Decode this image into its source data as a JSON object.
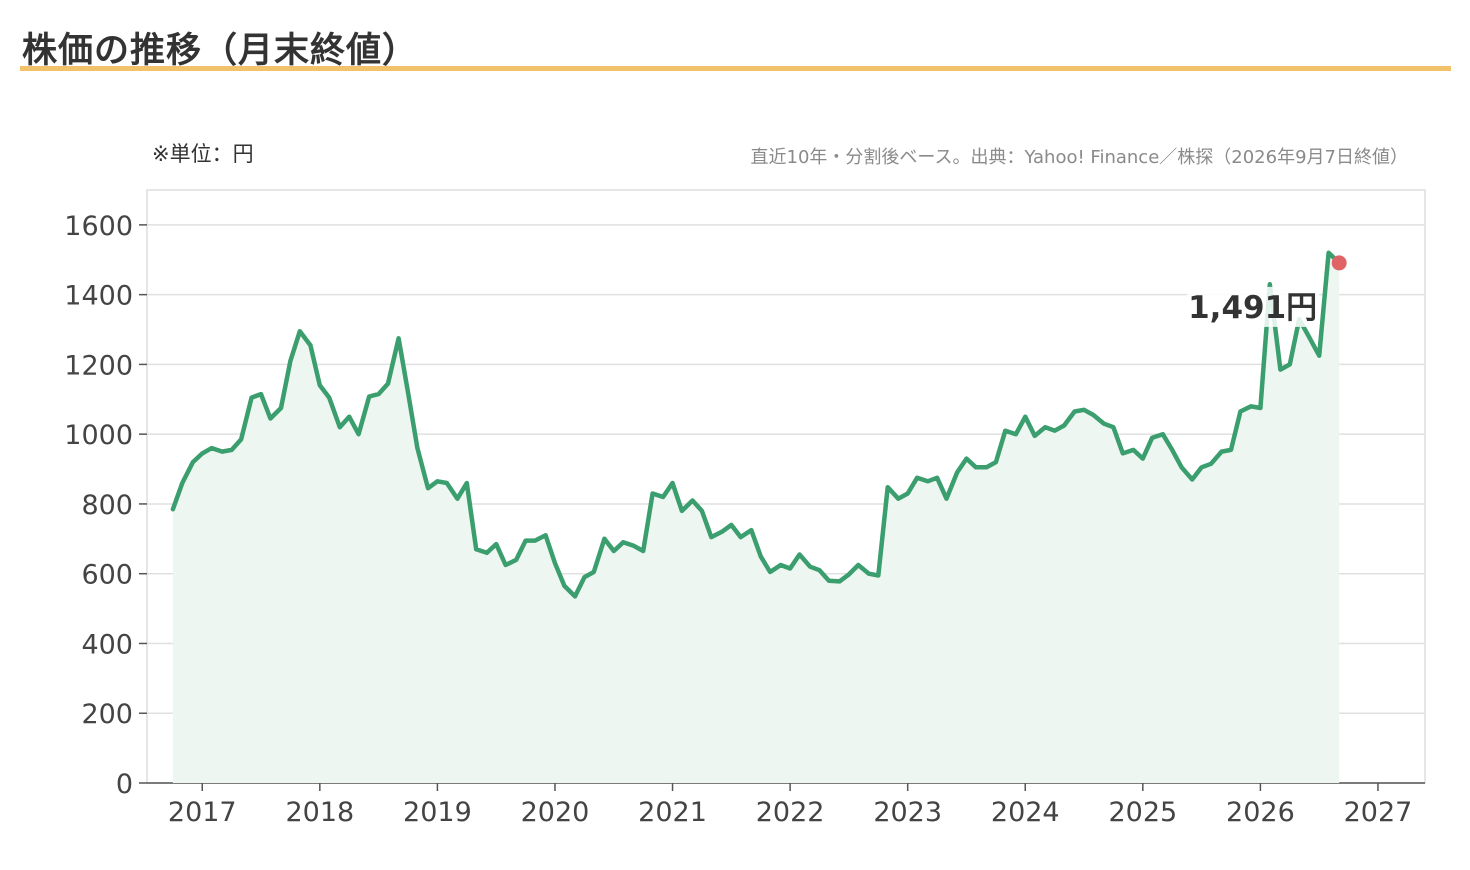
{
  "header": {
    "title": "株価の推移（月末終値）"
  },
  "notes": {
    "unit": "※単位：円",
    "source": "直近10年・分割後ベース。出典：Yahoo! Finance／株探（2026年9月7日終値）"
  },
  "colors": {
    "line": "#3a9e6e",
    "area": "#edf6f0",
    "marker": "#e06466",
    "accent_rule": "#f2c26b",
    "grid": "#e0e0e0"
  },
  "chart_data": {
    "type": "area",
    "title": "株価の推移（月末終値）",
    "xlabel": "",
    "ylabel": "",
    "ylim": [
      0,
      1700
    ],
    "xlim": [
      2016.53,
      2027.4
    ],
    "y_ticks": [
      0,
      200,
      400,
      600,
      800,
      1000,
      1200,
      1400,
      1600
    ],
    "x_ticks": [
      2017,
      2018,
      2019,
      2020,
      2021,
      2022,
      2023,
      2024,
      2025,
      2026,
      2027
    ],
    "grid": true,
    "legend": "none",
    "last_value_label": "1,491円",
    "x": [
      2016.75,
      2016.83,
      2016.92,
      2017.0,
      2017.08,
      2017.17,
      2017.25,
      2017.33,
      2017.42,
      2017.5,
      2017.58,
      2017.67,
      2017.75,
      2017.83,
      2017.92,
      2018.0,
      2018.08,
      2018.17,
      2018.25,
      2018.33,
      2018.42,
      2018.5,
      2018.58,
      2018.67,
      2018.75,
      2018.83,
      2018.92,
      2019.0,
      2019.08,
      2019.17,
      2019.25,
      2019.33,
      2019.42,
      2019.5,
      2019.58,
      2019.67,
      2019.75,
      2019.83,
      2019.92,
      2020.0,
      2020.08,
      2020.17,
      2020.25,
      2020.33,
      2020.42,
      2020.5,
      2020.58,
      2020.67,
      2020.75,
      2020.83,
      2020.92,
      2021.0,
      2021.08,
      2021.17,
      2021.25,
      2021.33,
      2021.42,
      2021.5,
      2021.58,
      2021.67,
      2021.75,
      2021.83,
      2021.92,
      2022.0,
      2022.08,
      2022.17,
      2022.25,
      2022.33,
      2022.42,
      2022.5,
      2022.58,
      2022.67,
      2022.75,
      2022.83,
      2022.92,
      2023.0,
      2023.08,
      2023.17,
      2023.25,
      2023.33,
      2023.42,
      2023.5,
      2023.58,
      2023.67,
      2023.75,
      2023.83,
      2023.92,
      2024.0,
      2024.08,
      2024.17,
      2024.25,
      2024.33,
      2024.42,
      2024.5,
      2024.58,
      2024.67,
      2024.75,
      2024.83,
      2024.92,
      2025.0,
      2025.08,
      2025.17,
      2025.25,
      2025.33,
      2025.42,
      2025.5,
      2025.58,
      2025.67,
      2025.75,
      2025.83,
      2025.92,
      2026.0,
      2026.08,
      2026.17,
      2026.25,
      2026.33,
      2026.42,
      2026.5,
      2026.58,
      2026.67
    ],
    "values": [
      785,
      860,
      920,
      945,
      960,
      950,
      955,
      985,
      1105,
      1115,
      1045,
      1075,
      1210,
      1295,
      1255,
      1140,
      1105,
      1020,
      1050,
      1000,
      1108,
      1115,
      1145,
      1275,
      1120,
      960,
      845,
      865,
      860,
      815,
      860,
      670,
      660,
      685,
      625,
      640,
      695,
      695,
      710,
      630,
      565,
      535,
      590,
      605,
      700,
      665,
      690,
      680,
      665,
      830,
      820,
      860,
      780,
      810,
      780,
      705,
      720,
      740,
      705,
      725,
      650,
      605,
      625,
      615,
      655,
      620,
      610,
      580,
      578,
      598,
      625,
      600,
      595,
      848,
      815,
      830,
      875,
      865,
      875,
      815,
      890,
      930,
      905,
      905,
      920,
      1010,
      1000,
      1050,
      995,
      1020,
      1010,
      1025,
      1065,
      1070,
      1055,
      1030,
      1020,
      945,
      955,
      930,
      990,
      1000,
      955,
      905,
      870,
      905,
      915,
      950,
      955,
      1065,
      1080,
      1075,
      1430,
      1185,
      1200,
      1330,
      1275,
      1225,
      1520,
      1491
    ]
  }
}
